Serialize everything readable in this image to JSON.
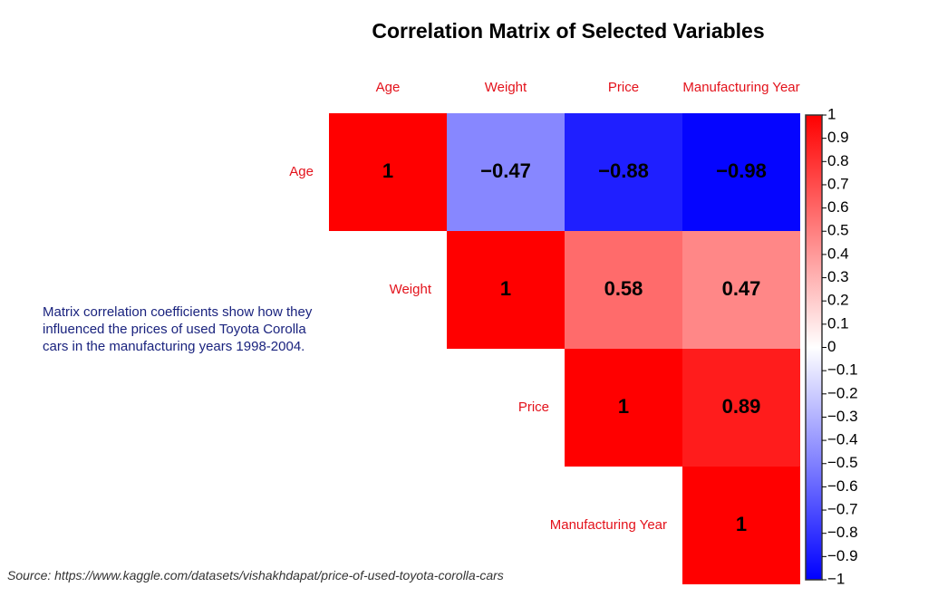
{
  "chart_data": {
    "type": "heatmap",
    "title": "Correlation Matrix of Selected Variables",
    "variables": [
      "Age",
      "Weight",
      "Price",
      "Manufacturing Year"
    ],
    "values": [
      [
        1,
        -0.47,
        -0.88,
        -0.98
      ],
      [
        null,
        1,
        0.58,
        0.47
      ],
      [
        null,
        null,
        1,
        0.89
      ],
      [
        null,
        null,
        null,
        1
      ]
    ],
    "value_labels": [
      [
        "1",
        "−0.47",
        "−0.88",
        "−0.98"
      ],
      [
        null,
        "1",
        "0.58",
        "0.47"
      ],
      [
        null,
        null,
        "1",
        "0.89"
      ],
      [
        null,
        null,
        null,
        "1"
      ]
    ],
    "zlim": [
      -1,
      1
    ],
    "colorscale": [
      "#0000ff",
      "#ffffff",
      "#ff0000"
    ],
    "label_color": "#e3121b",
    "zticks": [
      {
        "value": -1,
        "label": "−1"
      },
      {
        "value": -0.9,
        "label": "−0.9"
      },
      {
        "value": -0.8,
        "label": "−0.8"
      },
      {
        "value": -0.7,
        "label": "−0.7"
      },
      {
        "value": -0.6,
        "label": "−0.6"
      },
      {
        "value": -0.5,
        "label": "−0.5"
      },
      {
        "value": -0.4,
        "label": "−0.4"
      },
      {
        "value": -0.3,
        "label": "−0.3"
      },
      {
        "value": -0.2,
        "label": "−0.2"
      },
      {
        "value": -0.1,
        "label": "−0.1"
      },
      0,
      0.1,
      0.2,
      0.3,
      0.4,
      0.5,
      0.6,
      0.7,
      0.8,
      0.9,
      1
    ],
    "note": "Matrix correlation coefficients show how they influenced the prices of used Toyota Corolla cars in the manufacturing years 1998-2004.",
    "source": "Source: https://www.kaggle.com/datasets/vishakhdapat/price-of-used-toyota-corolla-cars"
  }
}
